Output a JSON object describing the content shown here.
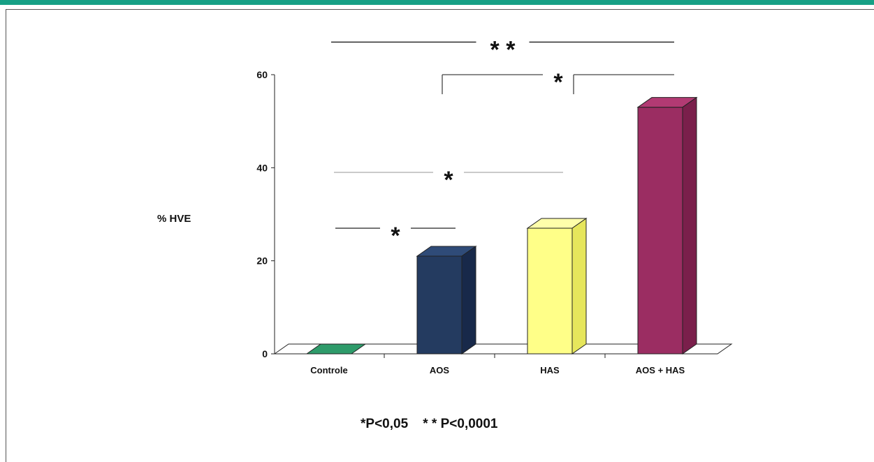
{
  "colors": {
    "accent_bar": "#16a085"
  },
  "chart_data": {
    "type": "bar",
    "style": "3d",
    "title": "",
    "xlabel": "",
    "ylabel": "% HVE",
    "ylim": [
      0,
      60
    ],
    "yticks": [
      "0",
      "20",
      "40",
      "60"
    ],
    "categories": [
      "Controle",
      "AOS",
      "HAS",
      "AOS + HAS"
    ],
    "values": [
      0,
      21,
      27,
      53
    ],
    "bar_colors": [
      {
        "front": "#2e9b6a",
        "top": "#3cbf84",
        "side": "#1f7a52"
      },
      {
        "front": "#243b60",
        "top": "#2f4b78",
        "side": "#18294a"
      },
      {
        "front": "#ffff88",
        "top": "#ffffaa",
        "side": "#e6e65c"
      },
      {
        "front": "#9b2d62",
        "top": "#b23a73",
        "side": "#7a1f4b"
      }
    ],
    "significance": [
      {
        "pair": [
          "Controle",
          "AOS + HAS"
        ],
        "y": 67,
        "label": "* *"
      },
      {
        "pair": [
          "AOS",
          "AOS + HAS"
        ],
        "y": 60,
        "label": "*"
      },
      {
        "pair": [
          "Controle",
          "HAS"
        ],
        "y": 39,
        "label": "*"
      },
      {
        "pair": [
          "Controle",
          "AOS"
        ],
        "y": 27,
        "label": "*"
      }
    ],
    "footnote": "*P<0,05    * * P<0,0001"
  }
}
